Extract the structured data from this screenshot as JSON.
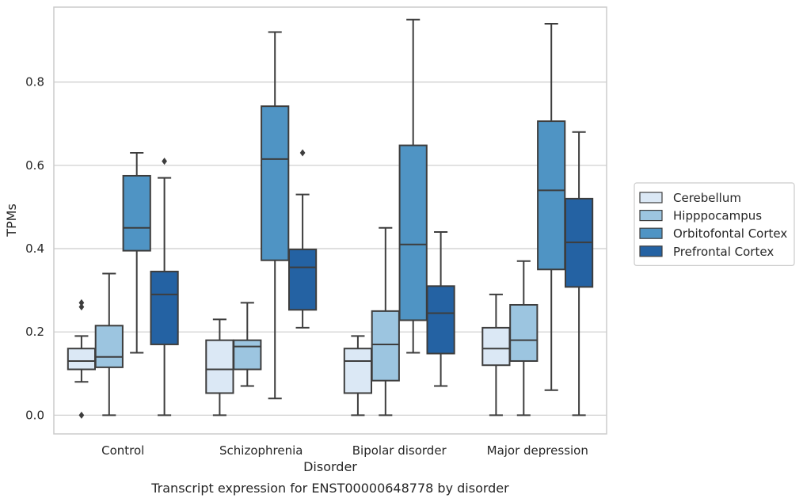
{
  "chart_data": {
    "type": "box",
    "caption": "Transcript expression for ENST00000648778 by disorder",
    "xlabel": "Disorder",
    "ylabel": "TPMs",
    "ylim": [
      -0.045,
      0.98
    ],
    "yticks": [
      0.0,
      0.2,
      0.4,
      0.6,
      0.8
    ],
    "ytick_labels": [
      "0.0",
      "0.2",
      "0.4",
      "0.6",
      "0.8"
    ],
    "grid": "horizontal",
    "legend_position": "right",
    "categories": [
      "Control",
      "Schizophrenia",
      "Bipolar disorder",
      "Major depression"
    ],
    "series": [
      {
        "name": "Cerebellum",
        "color": "#dbe8f5",
        "boxes": [
          {
            "whisker_low": 0.08,
            "q1": 0.11,
            "median": 0.13,
            "q3": 0.16,
            "whisker_high": 0.19,
            "outliers": [
              0.0,
              0.26,
              0.27
            ]
          },
          {
            "whisker_low": 0.0,
            "q1": 0.053,
            "median": 0.11,
            "q3": 0.18,
            "whisker_high": 0.23,
            "outliers": []
          },
          {
            "whisker_low": 0.0,
            "q1": 0.053,
            "median": 0.13,
            "q3": 0.16,
            "whisker_high": 0.19,
            "outliers": []
          },
          {
            "whisker_low": 0.0,
            "q1": 0.12,
            "median": 0.16,
            "q3": 0.21,
            "whisker_high": 0.29,
            "outliers": []
          }
        ]
      },
      {
        "name": "Hipppocampus",
        "color": "#9cc5e0",
        "boxes": [
          {
            "whisker_low": 0.0,
            "q1": 0.115,
            "median": 0.14,
            "q3": 0.215,
            "whisker_high": 0.34,
            "outliers": []
          },
          {
            "whisker_low": 0.07,
            "q1": 0.11,
            "median": 0.165,
            "q3": 0.18,
            "whisker_high": 0.27,
            "outliers": []
          },
          {
            "whisker_low": 0.0,
            "q1": 0.083,
            "median": 0.17,
            "q3": 0.25,
            "whisker_high": 0.45,
            "outliers": []
          },
          {
            "whisker_low": 0.0,
            "q1": 0.13,
            "median": 0.18,
            "q3": 0.265,
            "whisker_high": 0.37,
            "outliers": []
          }
        ]
      },
      {
        "name": "Orbitofontal Cortex",
        "color": "#4f94c4",
        "boxes": [
          {
            "whisker_low": 0.15,
            "q1": 0.395,
            "median": 0.45,
            "q3": 0.575,
            "whisker_high": 0.63,
            "outliers": []
          },
          {
            "whisker_low": 0.04,
            "q1": 0.372,
            "median": 0.615,
            "q3": 0.742,
            "whisker_high": 0.92,
            "outliers": []
          },
          {
            "whisker_low": 0.15,
            "q1": 0.228,
            "median": 0.41,
            "q3": 0.648,
            "whisker_high": 0.95,
            "outliers": []
          },
          {
            "whisker_low": 0.06,
            "q1": 0.35,
            "median": 0.54,
            "q3": 0.706,
            "whisker_high": 0.94,
            "outliers": []
          }
        ]
      },
      {
        "name": "Prefrontal Cortex",
        "color": "#2462a3",
        "boxes": [
          {
            "whisker_low": 0.0,
            "q1": 0.17,
            "median": 0.29,
            "q3": 0.345,
            "whisker_high": 0.57,
            "outliers": [
              0.61
            ]
          },
          {
            "whisker_low": 0.21,
            "q1": 0.253,
            "median": 0.355,
            "q3": 0.398,
            "whisker_high": 0.53,
            "outliers": [
              0.63
            ]
          },
          {
            "whisker_low": 0.07,
            "q1": 0.148,
            "median": 0.245,
            "q3": 0.31,
            "whisker_high": 0.44,
            "outliers": []
          },
          {
            "whisker_low": 0.0,
            "q1": 0.308,
            "median": 0.415,
            "q3": 0.52,
            "whisker_high": 0.68,
            "outliers": []
          }
        ]
      }
    ]
  }
}
